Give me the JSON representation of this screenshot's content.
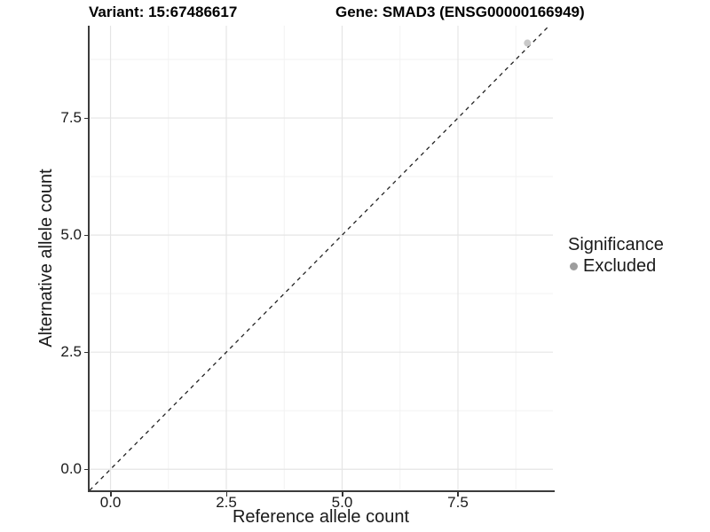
{
  "chart_data": {
    "type": "scatter",
    "title_variant": "Variant: 15:67486617",
    "title_gene": "Gene: SMAD3 (ENSG00000166949)",
    "xlabel": "Reference allele count",
    "ylabel": "Alternative allele count",
    "xlim": [
      -0.47,
      9.55
    ],
    "ylim": [
      -0.45,
      9.47
    ],
    "x_major_ticks": [
      0,
      2.5,
      5,
      7.5
    ],
    "x_tick_labels": [
      "0.0",
      "2.5",
      "5.0",
      "7.5"
    ],
    "y_major_ticks": [
      0,
      2.5,
      5,
      7.5
    ],
    "y_tick_labels": [
      "0.0",
      "2.5",
      "5.0",
      "7.5"
    ],
    "x_minor_ticks": [
      1.25,
      3.75,
      6.25,
      8.75
    ],
    "y_minor_ticks": [
      1.25,
      3.75,
      6.25,
      8.75
    ],
    "grid": "major+minor",
    "identity_line": {
      "slope": 1,
      "intercept": 0,
      "style": "dashed",
      "color": "#222222"
    },
    "series": [
      {
        "name": "Excluded",
        "color": "#c9c9c9",
        "points": [
          {
            "x": 9.0,
            "y": 9.1
          }
        ]
      }
    ],
    "legend": {
      "title": "Significance",
      "position": "right",
      "items": [
        {
          "label": "Excluded",
          "color": "#9d9d9d"
        }
      ]
    },
    "colors": {
      "grid_major": "#e5e5e5",
      "grid_minor": "#f2f2f2",
      "axis_line": "#3c3c3c",
      "tick_mark": "#333333",
      "text": "#1a1a1a",
      "background": "#ffffff"
    }
  }
}
